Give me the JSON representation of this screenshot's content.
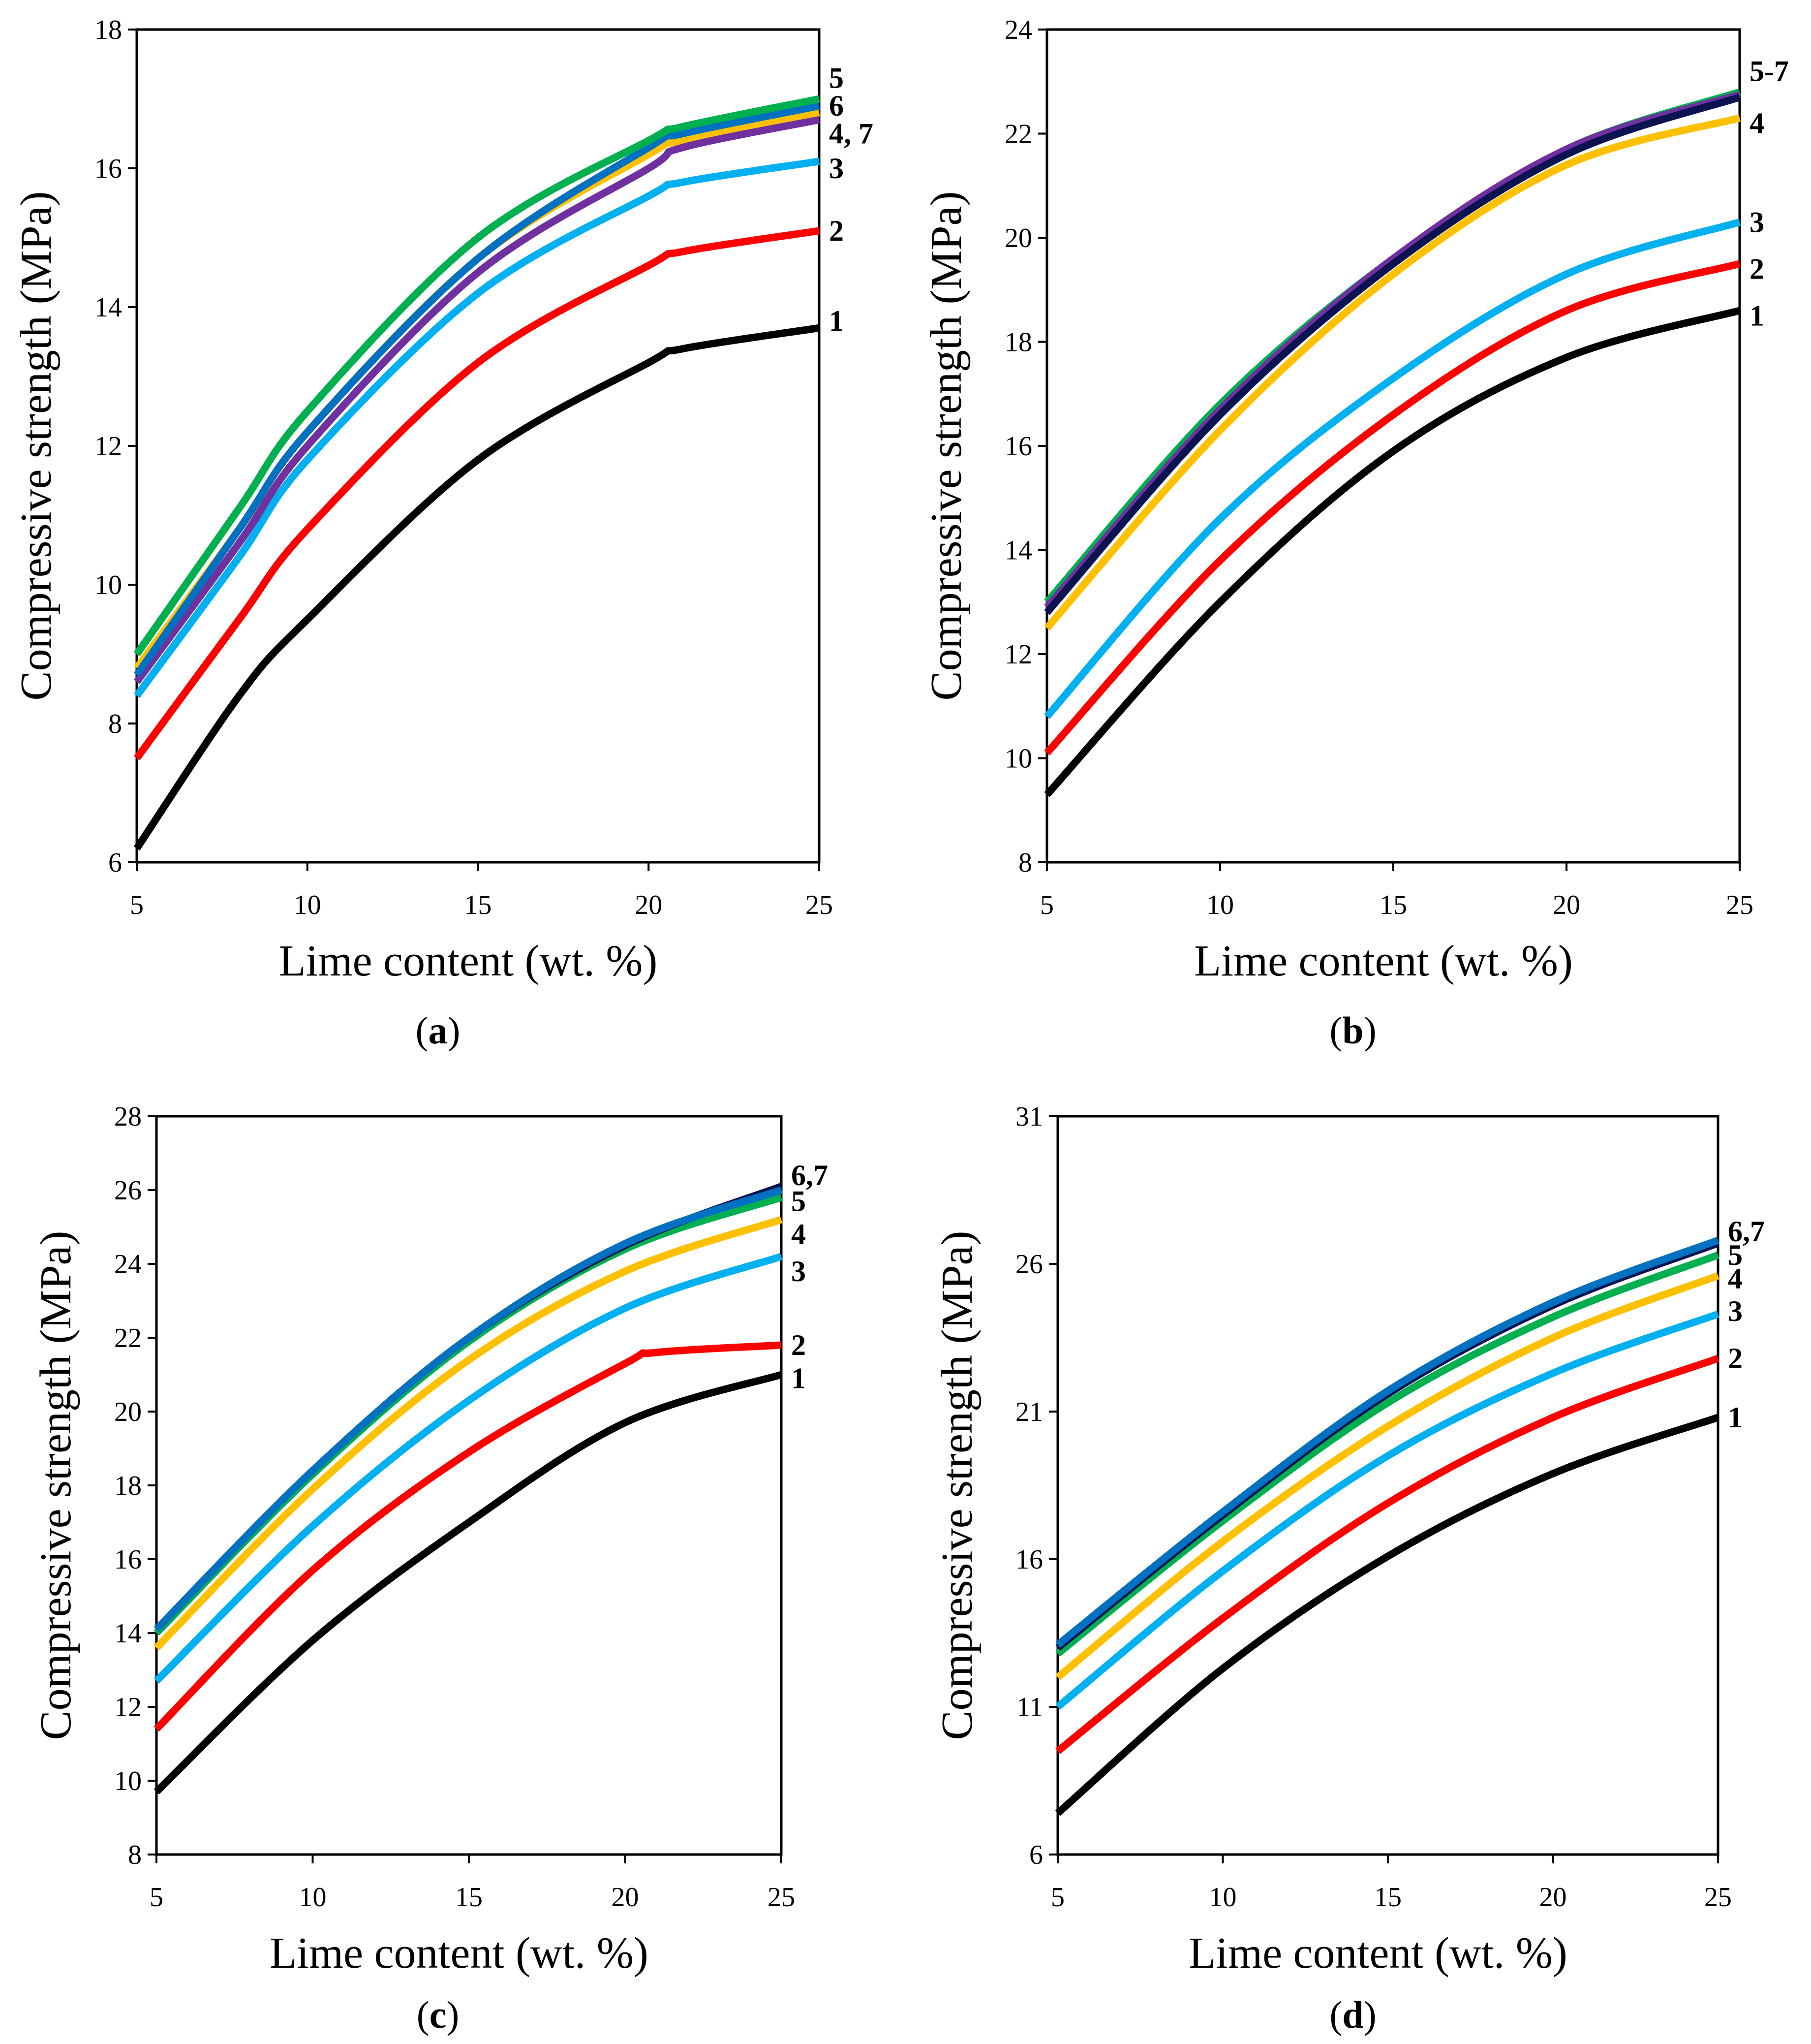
{
  "figure": {
    "panels_count": 4
  },
  "chart_data": [
    {
      "panel": "a",
      "caption_text": "(a)",
      "caption_letter": "a",
      "type": "line",
      "xlabel": "Lime content (wt. %)",
      "ylabel": "Compressive strength (MPa)",
      "xlim": [
        5,
        25
      ],
      "ylim": [
        6,
        18
      ],
      "xticks": [
        5,
        10,
        15,
        20,
        25
      ],
      "yticks": [
        6,
        8,
        10,
        12,
        14,
        16,
        18
      ],
      "grid": false,
      "series": [
        {
          "name": "1",
          "color": "#000000",
          "x": [
            5,
            8,
            10,
            15,
            20,
            21,
            25
          ],
          "y": [
            6.2,
            8.4,
            9.5,
            11.8,
            13.2,
            13.4,
            13.7
          ]
        },
        {
          "name": "2",
          "color": "#ff0000",
          "x": [
            5,
            8,
            10,
            15,
            20,
            21,
            25
          ],
          "y": [
            7.5,
            9.5,
            10.8,
            13.2,
            14.6,
            14.8,
            15.1
          ]
        },
        {
          "name": "3",
          "color": "#00b0f0",
          "x": [
            5,
            8,
            10,
            15,
            20,
            21,
            25
          ],
          "y": [
            8.4,
            10.4,
            11.8,
            14.2,
            15.6,
            15.8,
            16.1
          ]
        },
        {
          "name": "4",
          "color": "#ffc000",
          "x": [
            5,
            8,
            10,
            15,
            20,
            21,
            25
          ],
          "y": [
            8.8,
            10.8,
            12.2,
            14.7,
            16.2,
            16.4,
            16.8
          ]
        },
        {
          "name": "7",
          "color": "#7030a0",
          "x": [
            5,
            8,
            10,
            15,
            20,
            21,
            25
          ],
          "y": [
            8.6,
            10.6,
            12.0,
            14.5,
            16.0,
            16.3,
            16.7
          ]
        },
        {
          "name": "6",
          "color": "#0070c0",
          "x": [
            5,
            8,
            10,
            15,
            20,
            21,
            25
          ],
          "y": [
            8.7,
            10.8,
            12.2,
            14.7,
            16.3,
            16.5,
            16.9
          ]
        },
        {
          "name": "5",
          "color": "#00b050",
          "x": [
            5,
            8,
            10,
            15,
            20,
            21,
            25
          ],
          "y": [
            9.0,
            11.1,
            12.5,
            15.0,
            16.4,
            16.6,
            17.0
          ]
        }
      ],
      "end_labels": [
        {
          "text": "5",
          "y": 17.3
        },
        {
          "text": "6",
          "y": 16.9
        },
        {
          "text": "4, 7",
          "y": 16.5
        },
        {
          "text": "3",
          "y": 16.0
        },
        {
          "text": "2",
          "y": 15.1
        },
        {
          "text": "1",
          "y": 13.8
        }
      ]
    },
    {
      "panel": "b",
      "caption_text": "(b)",
      "caption_letter": "b",
      "type": "line",
      "xlabel": "Lime content (wt. %)",
      "ylabel": "Compressive strength (MPa)",
      "xlim": [
        5,
        25
      ],
      "ylim": [
        8,
        24
      ],
      "xticks": [
        5,
        10,
        15,
        20,
        25
      ],
      "yticks": [
        8,
        10,
        12,
        14,
        16,
        18,
        20,
        22,
        24
      ],
      "grid": false,
      "series": [
        {
          "name": "1",
          "color": "#000000",
          "x": [
            5,
            10,
            15,
            20,
            25
          ],
          "y": [
            9.3,
            13.0,
            15.9,
            17.7,
            18.6
          ]
        },
        {
          "name": "2",
          "color": "#ff0000",
          "x": [
            5,
            10,
            15,
            20,
            25
          ],
          "y": [
            10.1,
            13.8,
            16.6,
            18.6,
            19.5
          ]
        },
        {
          "name": "3",
          "color": "#00b0f0",
          "x": [
            5,
            10,
            15,
            20,
            25
          ],
          "y": [
            10.8,
            14.6,
            17.3,
            19.3,
            20.3
          ]
        },
        {
          "name": "4",
          "color": "#ffc000",
          "x": [
            5,
            10,
            15,
            20,
            25
          ],
          "y": [
            12.5,
            16.3,
            19.3,
            21.4,
            22.3
          ]
        },
        {
          "name": "5",
          "color": "#00b050",
          "x": [
            5,
            10,
            15,
            20,
            25
          ],
          "y": [
            13.0,
            16.8,
            19.6,
            21.7,
            22.8
          ]
        },
        {
          "name": "6",
          "color": "#7030a0",
          "x": [
            5,
            10,
            15,
            20,
            25
          ],
          "y": [
            12.9,
            16.7,
            19.6,
            21.7,
            22.75
          ]
        },
        {
          "name": "7",
          "color": "#0b1450",
          "x": [
            5,
            10,
            15,
            20,
            25
          ],
          "y": [
            12.8,
            16.6,
            19.5,
            21.6,
            22.7
          ]
        }
      ],
      "end_labels": [
        {
          "text": "5-7",
          "y": 23.2
        },
        {
          "text": "4",
          "y": 22.2
        },
        {
          "text": "3",
          "y": 20.3
        },
        {
          "text": "2",
          "y": 19.4
        },
        {
          "text": "1",
          "y": 18.5
        }
      ]
    },
    {
      "panel": "c",
      "caption_text": "(c)",
      "caption_letter": "c",
      "type": "line",
      "xlabel": "Lime content (wt. %)",
      "ylabel": "Compressive strength (MPa)",
      "xlim": [
        5,
        25
      ],
      "ylim": [
        8,
        28
      ],
      "xticks": [
        5,
        10,
        15,
        20,
        25
      ],
      "yticks": [
        8,
        10,
        12,
        14,
        16,
        18,
        20,
        22,
        24,
        26,
        28
      ],
      "grid": false,
      "series": [
        {
          "name": "1",
          "color": "#000000",
          "x": [
            5,
            10,
            15,
            20,
            25
          ],
          "y": [
            9.7,
            13.8,
            17.0,
            19.7,
            21.0
          ]
        },
        {
          "name": "2",
          "color": "#ff0000",
          "x": [
            5,
            10,
            15,
            20,
            21,
            25
          ],
          "y": [
            11.4,
            15.7,
            18.9,
            21.3,
            21.6,
            21.8
          ]
        },
        {
          "name": "3",
          "color": "#00b0f0",
          "x": [
            5,
            10,
            15,
            20,
            25
          ],
          "y": [
            12.7,
            16.9,
            20.3,
            22.8,
            24.2
          ]
        },
        {
          "name": "4",
          "color": "#ffc000",
          "x": [
            5,
            10,
            15,
            20,
            25
          ],
          "y": [
            13.6,
            17.9,
            21.4,
            23.8,
            25.2
          ]
        },
        {
          "name": "5",
          "color": "#00b050",
          "x": [
            5,
            10,
            15,
            20,
            25
          ],
          "y": [
            14.0,
            18.3,
            21.9,
            24.4,
            25.8
          ]
        },
        {
          "name": "6",
          "color": "#0b1450",
          "x": [
            5,
            10,
            15,
            20,
            25
          ],
          "y": [
            14.1,
            18.4,
            22.0,
            24.5,
            26.1
          ]
        },
        {
          "name": "7",
          "color": "#0070c0",
          "x": [
            5,
            10,
            15,
            20,
            25
          ],
          "y": [
            14.1,
            18.4,
            22.0,
            24.55,
            26.0
          ]
        }
      ],
      "end_labels": [
        {
          "text": "6,7",
          "y": 26.4
        },
        {
          "text": "5",
          "y": 25.7
        },
        {
          "text": "4",
          "y": 24.8
        },
        {
          "text": "3",
          "y": 23.8
        },
        {
          "text": "2",
          "y": 21.8
        },
        {
          "text": "1",
          "y": 20.9
        }
      ]
    },
    {
      "panel": "d",
      "caption_text": "(d)",
      "caption_letter": "d",
      "type": "line",
      "xlabel": "Lime content (wt. %)",
      "ylabel": "Compressive strength (MPa)",
      "xlim": [
        5,
        25
      ],
      "ylim": [
        6,
        31
      ],
      "xticks": [
        5,
        10,
        15,
        20,
        25
      ],
      "yticks": [
        6,
        11,
        16,
        21,
        26,
        31
      ],
      "grid": false,
      "series": [
        {
          "name": "1",
          "color": "#000000",
          "x": [
            5,
            10,
            15,
            20,
            25
          ],
          "y": [
            7.4,
            12.3,
            16.1,
            18.9,
            20.8
          ]
        },
        {
          "name": "2",
          "color": "#ff0000",
          "x": [
            5,
            10,
            15,
            20,
            25
          ],
          "y": [
            9.5,
            14.0,
            17.9,
            20.8,
            22.8
          ]
        },
        {
          "name": "3",
          "color": "#00b0f0",
          "x": [
            5,
            10,
            15,
            20,
            25
          ],
          "y": [
            11.0,
            15.6,
            19.5,
            22.3,
            24.3
          ]
        },
        {
          "name": "4",
          "color": "#ffc000",
          "x": [
            5,
            10,
            15,
            20,
            25
          ],
          "y": [
            12.0,
            16.6,
            20.5,
            23.5,
            25.6
          ]
        },
        {
          "name": "5",
          "color": "#00b050",
          "x": [
            5,
            10,
            15,
            20,
            25
          ],
          "y": [
            12.8,
            17.3,
            21.3,
            24.2,
            26.3
          ]
        },
        {
          "name": "6",
          "color": "#0b1450",
          "x": [
            5,
            10,
            15,
            20,
            25
          ],
          "y": [
            13.0,
            17.5,
            21.6,
            24.6,
            26.7
          ]
        },
        {
          "name": "7",
          "color": "#0070c0",
          "x": [
            5,
            10,
            15,
            20,
            25
          ],
          "y": [
            13.1,
            17.6,
            21.7,
            24.7,
            26.8
          ]
        }
      ],
      "end_labels": [
        {
          "text": "6,7",
          "y": 27.1
        },
        {
          "text": "5",
          "y": 26.3
        },
        {
          "text": "4",
          "y": 25.5
        },
        {
          "text": "3",
          "y": 24.4
        },
        {
          "text": "2",
          "y": 22.8
        },
        {
          "text": "1",
          "y": 20.8
        }
      ]
    }
  ]
}
